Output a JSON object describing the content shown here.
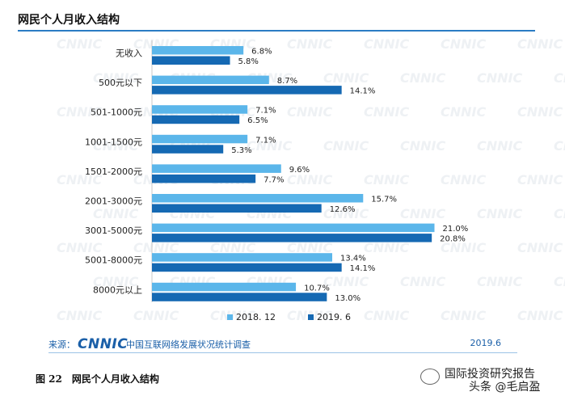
{
  "header": {
    "title": "网民个人月收入结构"
  },
  "chart_data": {
    "type": "bar",
    "orientation": "horizontal",
    "categories": [
      "无收入",
      "500元以下",
      "501-1000元",
      "1001-1500元",
      "1501-2000元",
      "2001-3000元",
      "3001-5000元",
      "5001-8000元",
      "8000元以上"
    ],
    "series": [
      {
        "name": "2018. 12",
        "values": [
          6.8,
          8.7,
          7.1,
          7.1,
          9.6,
          15.7,
          21.0,
          13.4,
          10.7
        ],
        "color": "#5bb6ea"
      },
      {
        "name": "2019. 6",
        "values": [
          5.8,
          14.1,
          6.5,
          5.3,
          7.7,
          12.6,
          20.8,
          14.1,
          13.0
        ],
        "color": "#1569b3"
      }
    ],
    "value_suffix": "%",
    "xlim": [
      0,
      21.0
    ],
    "legend_position": "bottom",
    "grid": false,
    "background_watermark": "CNNIC"
  },
  "source": {
    "label": "来源：",
    "logo": "CNNIC",
    "org": "中国互联网络发展状况统计调查",
    "date": "2019.6"
  },
  "caption": "图 22　网民个人月收入结构",
  "watermark": {
    "line1": "国际投资研究报告",
    "line2": "头条 @毛启盈"
  }
}
